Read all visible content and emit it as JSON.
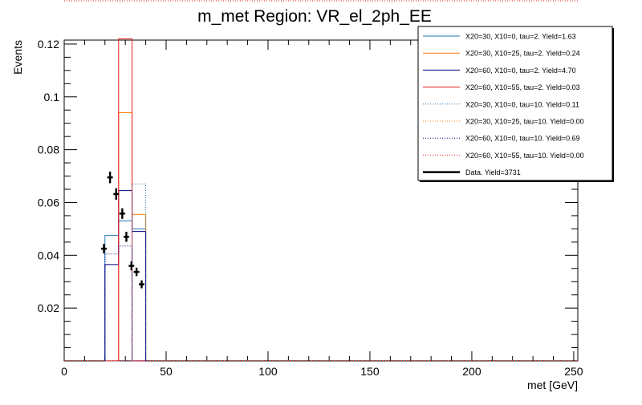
{
  "chart_data": {
    "type": "histogram",
    "title": "m_met Region: VR_el_2ph_EE",
    "xlabel": "met [GeV]",
    "ylabel": "Events",
    "xlim": [
      0,
      252
    ],
    "ylim": [
      0,
      0.1215
    ],
    "x_ticks": [
      0,
      50,
      100,
      150,
      200,
      250
    ],
    "x_tick_labels": [
      "0",
      "50",
      "100",
      "150",
      "200",
      "250"
    ],
    "y_ticks": [
      0.02,
      0.04,
      0.06,
      0.08,
      0.1,
      0.12
    ],
    "y_tick_labels": [
      "0.02",
      "0.04",
      "0.06",
      "0.08",
      "0.1",
      "0.12"
    ],
    "bin_edges": [
      20,
      26.7,
      33.3,
      40
    ],
    "legend_position": "top-right",
    "series": [
      {
        "name": "X20=30, X10=0, tau=2. Yield=1.63",
        "color": "#1f77b4",
        "style": "solid",
        "values": [
          0.0475,
          0.053,
          0.05
        ]
      },
      {
        "name": "X20=30, X10=25, tau=2. Yield=0.24",
        "color": "#ff7f0e",
        "style": "solid",
        "values": [
          0.0,
          0.094,
          0.0555
        ]
      },
      {
        "name": "X20=60, X10=0, tau=2. Yield=4.70",
        "color": "#000080",
        "style": "solid",
        "values": [
          0.0365,
          0.0645,
          0.049
        ]
      },
      {
        "name": "X20=60, X10=55, tau=2. Yield=0.03",
        "color": "#e41a1c",
        "style": "solid",
        "values": [
          0.0,
          0.122,
          0.0
        ]
      },
      {
        "name": "X20=30, X10=0, tau=10. Yield=0.11",
        "color": "#1f77b4",
        "style": "dotted",
        "values": [
          0.0,
          0.0,
          0.067
        ]
      },
      {
        "name": "X20=30, X10=25, tau=10. Yield=0.00",
        "color": "#ff7f0e",
        "style": "dotted",
        "values": [
          0.0,
          0.0,
          0.0
        ]
      },
      {
        "name": "X20=60, X10=0, tau=10. Yield=0.69",
        "color": "#000080",
        "style": "dotted",
        "values": [
          0.0405,
          0.0435,
          0.0
        ]
      },
      {
        "name": "X20=60, X10=55, tau=10. Yield=0.00",
        "color": "#e41a1c",
        "style": "dotted",
        "values": [
          0.0,
          0.0,
          0.0
        ]
      }
    ],
    "data": {
      "name": "Data. Yield=3731",
      "color": "#000000",
      "points": [
        {
          "x": 19.5,
          "y": 0.0425,
          "yerr": 0.0018
        },
        {
          "x": 22.5,
          "y": 0.0695,
          "yerr": 0.0022
        },
        {
          "x": 25.5,
          "y": 0.0632,
          "yerr": 0.0022
        },
        {
          "x": 28.5,
          "y": 0.0558,
          "yerr": 0.002
        },
        {
          "x": 30.5,
          "y": 0.047,
          "yerr": 0.0019
        },
        {
          "x": 33.0,
          "y": 0.036,
          "yerr": 0.0017
        },
        {
          "x": 35.5,
          "y": 0.0337,
          "yerr": 0.0016
        },
        {
          "x": 38.0,
          "y": 0.029,
          "yerr": 0.0015
        }
      ]
    }
  }
}
